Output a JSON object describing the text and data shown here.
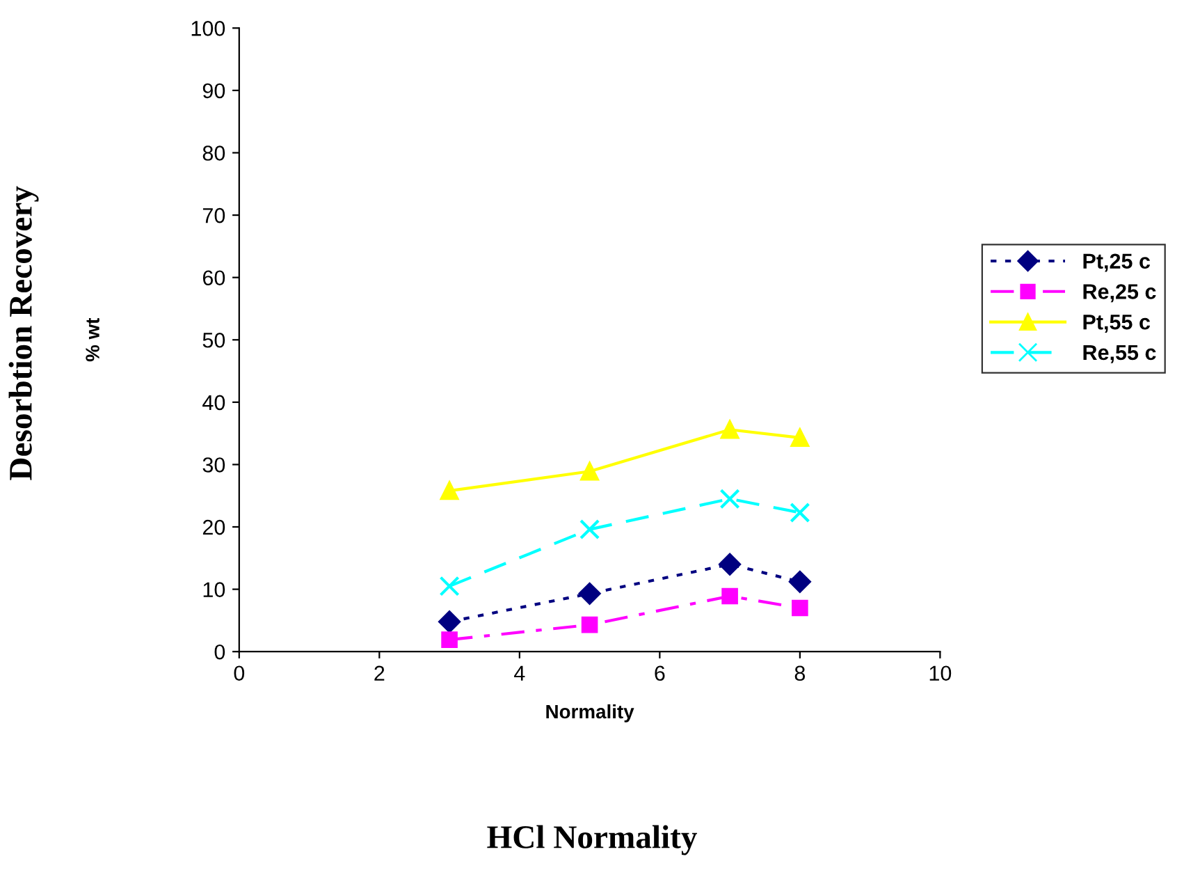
{
  "chart_data": {
    "type": "line",
    "xlabel": "Normality",
    "ylabel": "% wt",
    "annotations": [
      "Desorbtion Recovery",
      "HCl Normality"
    ],
    "x": [
      3,
      5,
      7,
      8
    ],
    "series": [
      {
        "name": "Pt,25 c",
        "color": "#000080",
        "marker": "diamond",
        "line_style": "dotted",
        "values": [
          4.8,
          9.3,
          14,
          11.2
        ]
      },
      {
        "name": "Re,25 c",
        "color": "#ff00ff",
        "marker": "square",
        "line_style": "dashdot",
        "values": [
          1.9,
          4.3,
          8.9,
          7
        ]
      },
      {
        "name": "Pt,55 c",
        "color": "#ffff00",
        "marker": "triangle",
        "line_style": "solid",
        "values": [
          25.8,
          28.9,
          35.6,
          34.3
        ]
      },
      {
        "name": "Re,55 c",
        "color": "#00ffff",
        "marker": "cross",
        "line_style": "dashed",
        "values": [
          10.5,
          19.6,
          24.5,
          22.3
        ]
      }
    ],
    "xlim": [
      0,
      10
    ],
    "xticks": [
      0,
      2,
      4,
      6,
      8,
      10
    ],
    "ylim": [
      0,
      100
    ],
    "yticks": [
      0,
      10,
      20,
      30,
      40,
      50,
      60,
      70,
      80,
      90,
      100
    ],
    "grid": false,
    "legend": "right"
  }
}
